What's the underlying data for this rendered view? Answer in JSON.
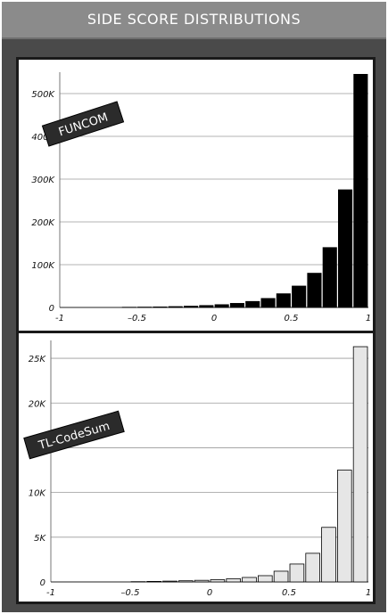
{
  "header": {
    "title": "SIDE SCORE DISTRIBUTIONS"
  },
  "colors": {
    "frame": "#4a4a4a",
    "header": "#8b8b8b",
    "funcom_bars": "#000000",
    "tlcodesum_bars": "#e6e6e6",
    "gridline": "#9a9a9a"
  },
  "chart_data": [
    {
      "type": "bar",
      "title": "FUNCOM",
      "xlabel": "",
      "ylabel": "",
      "x": [
        -0.95,
        -0.85,
        -0.75,
        -0.65,
        -0.55,
        -0.45,
        -0.35,
        -0.25,
        -0.15,
        -0.05,
        0.05,
        0.15,
        0.25,
        0.35,
        0.45,
        0.55,
        0.65,
        0.75,
        0.85,
        0.95
      ],
      "values": [
        0,
        0,
        0,
        0,
        500,
        800,
        1200,
        2000,
        3000,
        4500,
        6500,
        9500,
        14000,
        21000,
        32000,
        50000,
        80000,
        140000,
        275000,
        545000
      ],
      "x_ticks": [
        "-1",
        "–0.5",
        "0",
        "0.5",
        "1"
      ],
      "y_ticks": [
        "0",
        "100K",
        "200K",
        "300K",
        "400K",
        "500K"
      ],
      "xlim": [
        -1,
        1
      ],
      "ylim": [
        0,
        550000
      ],
      "grid": "horizontal",
      "bar_color": "#000000"
    },
    {
      "type": "bar",
      "title": "TL-CodeSum",
      "xlabel": "",
      "ylabel": "",
      "x": [
        -0.95,
        -0.85,
        -0.75,
        -0.65,
        -0.55,
        -0.45,
        -0.35,
        -0.25,
        -0.15,
        -0.05,
        0.05,
        0.15,
        0.25,
        0.35,
        0.45,
        0.55,
        0.65,
        0.75,
        0.85,
        0.95
      ],
      "values": [
        0,
        0,
        0,
        0,
        0,
        30,
        60,
        90,
        130,
        180,
        250,
        350,
        500,
        700,
        1200,
        2000,
        3200,
        6100,
        12500,
        26300
      ],
      "x_ticks": [
        "-1",
        "–0.5",
        "0",
        "0.5",
        "1"
      ],
      "y_ticks": [
        "0",
        "5K",
        "10K",
        "15K",
        "20K",
        "25K"
      ],
      "xlim": [
        -1,
        1
      ],
      "ylim": [
        0,
        27000
      ],
      "grid": "horizontal",
      "bar_color": "#e6e6e6"
    }
  ]
}
